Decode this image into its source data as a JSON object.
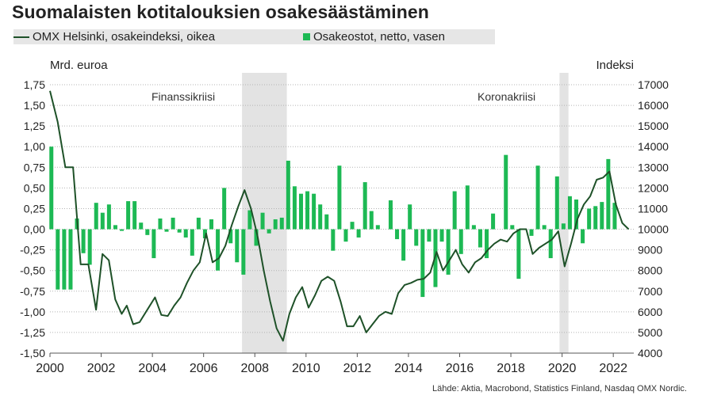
{
  "title": "Suomalaisten kotitalouksien osakesäästäminen",
  "legend": {
    "line_label": "OMX Helsinki, osakeindeksi, oikea",
    "bar_label": "Osakeostot, netto, vasen"
  },
  "axes": {
    "left_unit": "Mrd. euroa",
    "right_unit": "Indeksi"
  },
  "annotations": {
    "crisis1": "Finanssikriisi",
    "crisis2": "Koronakriisi"
  },
  "source": "Lähde: Aktia, Macrobond, Statistics Finland, Nasdaq OMX Nordic.",
  "colors": {
    "bar": "#1db954",
    "line": "#1e5128",
    "shade": "#e3e3e3",
    "grid": "#b3b3b3"
  },
  "chart_data": {
    "type": "bar+line",
    "x_axis": {
      "min": 2000,
      "max": 2022.8,
      "ticks": [
        "2000",
        "2002",
        "2004",
        "2006",
        "2008",
        "2010",
        "2012",
        "2014",
        "2016",
        "2018",
        "2020",
        "2022"
      ]
    },
    "y_left": {
      "min": -1.5,
      "max": 1.75,
      "ticks": [
        "-1,50",
        "-1,25",
        "-1,00",
        "-0,75",
        "-0,50",
        "-0,25",
        "0,00",
        "0,25",
        "0,50",
        "0,75",
        "1,00",
        "1,25",
        "1,50",
        "1,75"
      ]
    },
    "y_right": {
      "min": 4000,
      "max": 17000,
      "ticks": [
        "4000",
        "5000",
        "6000",
        "7000",
        "8000",
        "9000",
        "10000",
        "11000",
        "12000",
        "13000",
        "14000",
        "15000",
        "16000",
        "17000"
      ]
    },
    "shaded_periods": [
      [
        2007.5,
        2009.25
      ],
      [
        2019.9,
        2020.25
      ]
    ],
    "bars": {
      "name": "Osakeostot, netto, vasen",
      "start": 2000.0,
      "step": 0.25,
      "values": [
        1.0,
        -0.73,
        -0.73,
        -0.73,
        0.13,
        -0.29,
        -0.43,
        0.32,
        0.2,
        0.3,
        0.05,
        -0.02,
        0.34,
        0.34,
        0.08,
        -0.07,
        -0.35,
        0.13,
        -0.03,
        0.14,
        -0.04,
        -0.1,
        -0.32,
        0.14,
        -0.11,
        0.12,
        -0.5,
        0.5,
        -0.17,
        -0.4,
        -0.55,
        0.23,
        -0.2,
        0.2,
        -0.05,
        0.12,
        0.14,
        0.83,
        0.52,
        0.43,
        0.46,
        0.43,
        0.3,
        0.18,
        -0.26,
        0.77,
        -0.15,
        0.09,
        -0.1,
        0.57,
        0.22,
        0.05,
        0.0,
        0.35,
        -0.12,
        -0.38,
        0.3,
        -0.2,
        -0.82,
        -0.15,
        -0.7,
        -0.15,
        -0.55,
        0.46,
        -0.3,
        0.53,
        0.05,
        -0.22,
        -0.35,
        0.19,
        0.0,
        0.9,
        0.05,
        -0.6,
        0.0,
        -0.08,
        0.77,
        0.05,
        -0.35,
        0.64,
        0.07,
        0.4,
        0.36,
        -0.17,
        0.25,
        0.28,
        0.33,
        0.85,
        0.32
      ]
    },
    "line": {
      "name": "OMX Helsinki, osakeindeksi, oikea",
      "points": [
        [
          2000.0,
          16700
        ],
        [
          2000.3,
          15200
        ],
        [
          2000.6,
          13000
        ],
        [
          2000.9,
          13000
        ],
        [
          2001.2,
          8300
        ],
        [
          2001.5,
          8300
        ],
        [
          2001.8,
          6100
        ],
        [
          2002.05,
          8800
        ],
        [
          2002.3,
          8500
        ],
        [
          2002.55,
          6600
        ],
        [
          2002.8,
          5900
        ],
        [
          2003.0,
          6300
        ],
        [
          2003.25,
          5400
        ],
        [
          2003.5,
          5500
        ],
        [
          2003.8,
          6100
        ],
        [
          2004.1,
          6700
        ],
        [
          2004.35,
          5850
        ],
        [
          2004.6,
          5800
        ],
        [
          2004.85,
          6300
        ],
        [
          2005.1,
          6700
        ],
        [
          2005.35,
          7400
        ],
        [
          2005.6,
          8000
        ],
        [
          2005.85,
          8400
        ],
        [
          2006.1,
          9800
        ],
        [
          2006.35,
          8400
        ],
        [
          2006.6,
          8600
        ],
        [
          2006.85,
          9200
        ],
        [
          2007.1,
          10200
        ],
        [
          2007.35,
          11100
        ],
        [
          2007.6,
          11900
        ],
        [
          2007.85,
          11000
        ],
        [
          2008.1,
          9700
        ],
        [
          2008.35,
          8000
        ],
        [
          2008.6,
          6500
        ],
        [
          2008.85,
          5200
        ],
        [
          2009.1,
          4600
        ],
        [
          2009.35,
          5900
        ],
        [
          2009.6,
          6700
        ],
        [
          2009.85,
          7200
        ],
        [
          2010.1,
          6200
        ],
        [
          2010.35,
          6800
        ],
        [
          2010.6,
          7500
        ],
        [
          2010.85,
          7700
        ],
        [
          2011.1,
          7500
        ],
        [
          2011.35,
          6500
        ],
        [
          2011.6,
          5300
        ],
        [
          2011.85,
          5300
        ],
        [
          2012.1,
          5800
        ],
        [
          2012.35,
          5000
        ],
        [
          2012.6,
          5400
        ],
        [
          2012.85,
          5800
        ],
        [
          2013.1,
          6000
        ],
        [
          2013.35,
          5900
        ],
        [
          2013.6,
          6900
        ],
        [
          2013.85,
          7300
        ],
        [
          2014.1,
          7400
        ],
        [
          2014.35,
          7550
        ],
        [
          2014.6,
          7600
        ],
        [
          2014.85,
          7900
        ],
        [
          2015.1,
          8900
        ],
        [
          2015.35,
          8000
        ],
        [
          2015.6,
          8500
        ],
        [
          2015.85,
          9000
        ],
        [
          2016.1,
          8300
        ],
        [
          2016.35,
          7900
        ],
        [
          2016.6,
          8400
        ],
        [
          2016.85,
          8600
        ],
        [
          2017.1,
          9000
        ],
        [
          2017.35,
          9300
        ],
        [
          2017.6,
          9500
        ],
        [
          2017.85,
          9400
        ],
        [
          2018.1,
          9800
        ],
        [
          2018.35,
          10000
        ],
        [
          2018.6,
          10000
        ],
        [
          2018.85,
          8800
        ],
        [
          2019.1,
          9100
        ],
        [
          2019.35,
          9300
        ],
        [
          2019.6,
          9500
        ],
        [
          2019.85,
          9900
        ],
        [
          2020.1,
          8200
        ],
        [
          2020.35,
          9300
        ],
        [
          2020.6,
          10500
        ],
        [
          2020.85,
          11200
        ],
        [
          2021.1,
          11600
        ],
        [
          2021.35,
          12400
        ],
        [
          2021.6,
          12500
        ],
        [
          2021.85,
          12800
        ],
        [
          2022.1,
          11200
        ],
        [
          2022.35,
          10300
        ],
        [
          2022.6,
          10000
        ]
      ]
    }
  }
}
